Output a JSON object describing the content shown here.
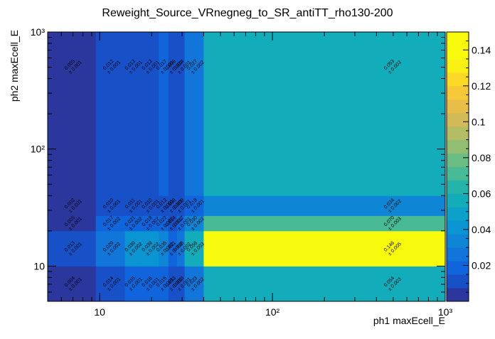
{
  "chart_data": {
    "type": "heatmap",
    "title": "Reweight_Source_VRnegneg_to_SR_antiTT_rho130-200",
    "xlabel": "ph1 maxEcell_E",
    "ylabel": "ph2 maxEcell_E",
    "x_scale": "log",
    "y_scale": "log",
    "xlim": [
      5,
      1000
    ],
    "ylim": [
      5,
      1000
    ],
    "x_ticks": [
      {
        "v": 10,
        "label": "10"
      },
      {
        "v": 100,
        "label": "10²"
      },
      {
        "v": 1000,
        "label": "10³"
      }
    ],
    "y_ticks": [
      {
        "v": 10,
        "label": "10"
      },
      {
        "v": 100,
        "label": "10²"
      },
      {
        "v": 1000,
        "label": "10³"
      }
    ],
    "x_edges": [
      5,
      9.5,
      14,
      17,
      22,
      25,
      28,
      31,
      40,
      1000
    ],
    "y_edges": [
      5,
      10,
      20,
      27,
      40,
      1000
    ],
    "z_range": [
      0,
      0.15
    ],
    "colorbar_ticks": [
      {
        "v": 0.02,
        "label": "0.02"
      },
      {
        "v": 0.04,
        "label": "0.04"
      },
      {
        "v": 0.06,
        "label": "0.06"
      },
      {
        "v": 0.08,
        "label": "0.08"
      },
      {
        "v": 0.1,
        "label": "0.1"
      },
      {
        "v": 0.12,
        "label": "0.12"
      },
      {
        "v": 0.14,
        "label": "0.14"
      }
    ],
    "grid": false,
    "cells": [
      {
        "i": 0,
        "j": 0,
        "value": 0.004,
        "vlabel": "0.004",
        "elabel": "± 0.001"
      },
      {
        "i": 1,
        "j": 0,
        "value": 0.014,
        "vlabel": "0.014",
        "elabel": "± 0.001"
      },
      {
        "i": 2,
        "j": 0,
        "value": 0.015,
        "vlabel": "0.015",
        "elabel": "± 0.001"
      },
      {
        "i": 3,
        "j": 0,
        "value": 0.016,
        "vlabel": "0.016",
        "elabel": "± 0.001"
      },
      {
        "i": 4,
        "j": 0,
        "value": 0.015,
        "vlabel": "0.015",
        "elabel": "± 0.001"
      },
      {
        "i": 5,
        "j": 0,
        "value": 0.013,
        "vlabel": "0.013",
        "elabel": "± 0.001"
      },
      {
        "i": 6,
        "j": 0,
        "value": 0.013,
        "vlabel": "0.013",
        "elabel": "± 0.001"
      },
      {
        "i": 7,
        "j": 0,
        "value": 0.023,
        "vlabel": "0.023",
        "elabel": "± 0.002"
      },
      {
        "i": 8,
        "j": 0,
        "value": 0.054,
        "vlabel": "0.054",
        "elabel": "± 0.003"
      },
      {
        "i": 0,
        "j": 1,
        "value": 0.013,
        "vlabel": "0.013",
        "elabel": "± 0.001"
      },
      {
        "i": 1,
        "j": 1,
        "value": 0.029,
        "vlabel": "0.029",
        "elabel": "± 0.002"
      },
      {
        "i": 2,
        "j": 1,
        "value": 0.039,
        "vlabel": "0.039",
        "elabel": "± 0.002"
      },
      {
        "i": 3,
        "j": 1,
        "value": 0.039,
        "vlabel": "0.039",
        "elabel": "± 0.002"
      },
      {
        "i": 4,
        "j": 1,
        "value": 0.035,
        "vlabel": "0.035",
        "elabel": "± 0.002"
      },
      {
        "i": 5,
        "j": 1,
        "value": 0.021,
        "vlabel": "0.021",
        "elabel": "± 0.002"
      },
      {
        "i": 6,
        "j": 1,
        "value": 0.028,
        "vlabel": "0.028",
        "elabel": "± 0.002"
      },
      {
        "i": 7,
        "j": 1,
        "value": 0.056,
        "vlabel": "0.056",
        "elabel": "± 0.003"
      },
      {
        "i": 8,
        "j": 1,
        "value": 0.146,
        "vlabel": "0.146",
        "elabel": "± 0.005"
      },
      {
        "i": 0,
        "j": 2,
        "value": 0.005,
        "vlabel": "0.005",
        "elabel": "± 0.001"
      },
      {
        "i": 1,
        "j": 2,
        "value": 0.017,
        "vlabel": "0.017",
        "elabel": "± 0.002"
      },
      {
        "i": 2,
        "j": 2,
        "value": 0.021,
        "vlabel": "0.021",
        "elabel": "± 0.002"
      },
      {
        "i": 3,
        "j": 2,
        "value": 0.018,
        "vlabel": "0.018",
        "elabel": "± 0.002"
      },
      {
        "i": 4,
        "j": 2,
        "value": 0.022,
        "vlabel": "0.022",
        "elabel": "± 0.002"
      },
      {
        "i": 5,
        "j": 2,
        "value": 0.014,
        "vlabel": "0.014",
        "elabel": "± 0.001"
      },
      {
        "i": 6,
        "j": 2,
        "value": 0.017,
        "vlabel": "0.017",
        "elabel": "± 0.001"
      },
      {
        "i": 7,
        "j": 2,
        "value": 0.03,
        "vlabel": "0.030",
        "elabel": "± 0.002"
      },
      {
        "i": 8,
        "j": 2,
        "value": 0.07,
        "vlabel": "0.070",
        "elabel": "± 0.003"
      },
      {
        "i": 0,
        "j": 3,
        "value": 0.002,
        "vlabel": "0.002",
        "elabel": "± 0.001"
      },
      {
        "i": 1,
        "j": 3,
        "value": 0.01,
        "vlabel": "0.010",
        "elabel": "± 0.001"
      },
      {
        "i": 2,
        "j": 3,
        "value": 0.011,
        "vlabel": "0.011",
        "elabel": "± 0.001"
      },
      {
        "i": 3,
        "j": 3,
        "value": 0.01,
        "vlabel": "0.010",
        "elabel": "± 0.001"
      },
      {
        "i": 4,
        "j": 3,
        "value": 0.012,
        "vlabel": "0.012",
        "elabel": "± 0.001"
      },
      {
        "i": 5,
        "j": 3,
        "value": 0.009,
        "vlabel": "0.009",
        "elabel": "± 0.001"
      },
      {
        "i": 6,
        "j": 3,
        "value": 0.009,
        "vlabel": "0.009",
        "elabel": "± 0.001"
      },
      {
        "i": 7,
        "j": 3,
        "value": 0.018,
        "vlabel": "0.018",
        "elabel": "± 0.001"
      },
      {
        "i": 8,
        "j": 3,
        "value": 0.034,
        "vlabel": "0.034",
        "elabel": "± 0.002"
      },
      {
        "i": 0,
        "j": 4,
        "value": 0.005,
        "vlabel": "0.005",
        "elabel": "± 0.001"
      },
      {
        "i": 1,
        "j": 4,
        "value": 0.012,
        "vlabel": "0.012",
        "elabel": "± 0.001"
      },
      {
        "i": 2,
        "j": 4,
        "value": 0.013,
        "vlabel": "0.013",
        "elabel": "± 0.001"
      },
      {
        "i": 3,
        "j": 4,
        "value": 0.013,
        "vlabel": "0.013",
        "elabel": "± 0.001"
      },
      {
        "i": 4,
        "j": 4,
        "value": 0.017,
        "vlabel": "0.017",
        "elabel": "± 0.001"
      },
      {
        "i": 5,
        "j": 4,
        "value": 0.009,
        "vlabel": "0.009",
        "elabel": "± 0.001"
      },
      {
        "i": 6,
        "j": 4,
        "value": 0.014,
        "vlabel": "0.014",
        "elabel": "± 0.001"
      },
      {
        "i": 7,
        "j": 4,
        "value": 0.027,
        "vlabel": "0.027",
        "elabel": "± 0.002"
      },
      {
        "i": 8,
        "j": 4,
        "value": 0.053,
        "vlabel": "0.053",
        "elabel": "± 0.003"
      }
    ]
  }
}
